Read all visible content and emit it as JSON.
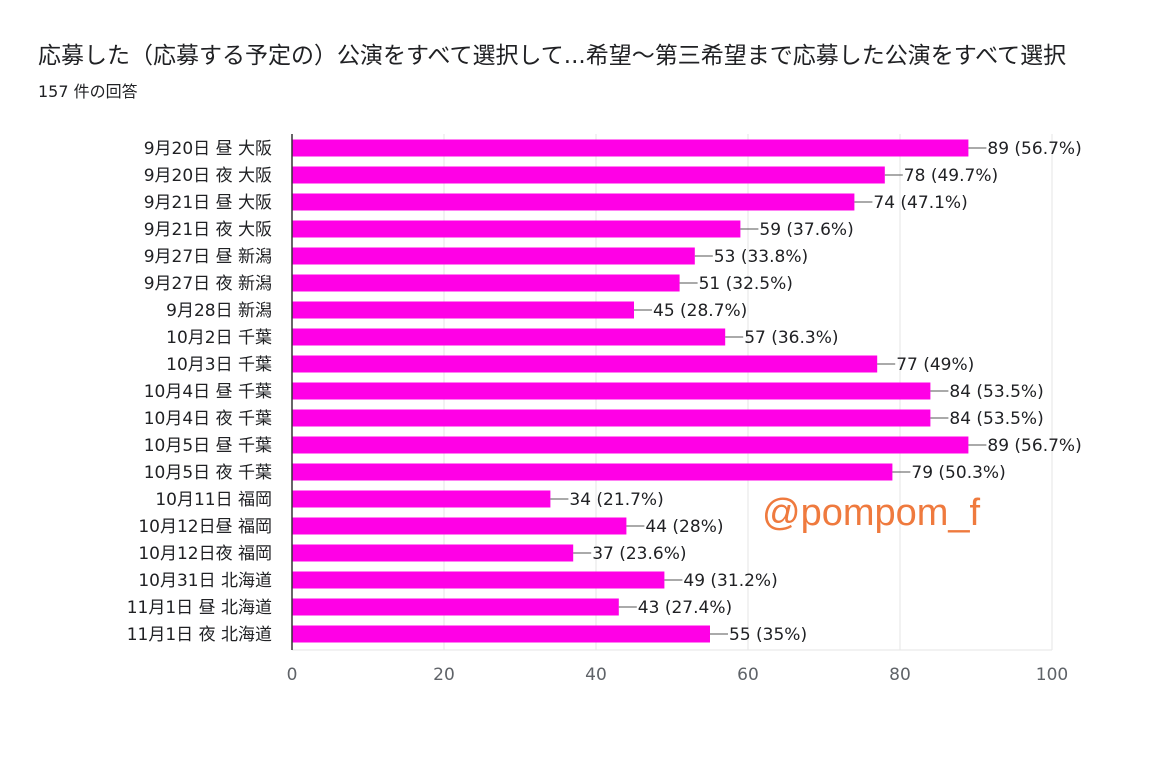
{
  "header": {
    "title": "応募した（応募する予定の）公演をすべて選択して...希望〜第三希望まで応募した公演をすべて選択",
    "subtitle": "157 件の回答"
  },
  "watermark": "@pompom_f",
  "colors": {
    "bar": "#ff00e6",
    "grid": "#e6e6e6",
    "axis": "#333333",
    "watermark": "#ef7a3e"
  },
  "chart_data": {
    "type": "bar",
    "orientation": "horizontal",
    "categories": [
      "9月20日 昼 大阪",
      "9月20日 夜 大阪",
      "9月21日 昼 大阪",
      "9月21日 夜 大阪",
      "9月27日 昼 新潟",
      "9月27日 夜 新潟",
      "9月28日 新潟",
      "10月2日 千葉",
      "10月3日 千葉",
      "10月4日 昼 千葉",
      "10月4日 夜 千葉",
      "10月5日 昼 千葉",
      "10月5日 夜 千葉",
      "10月11日 福岡",
      "10月12日昼 福岡",
      "10月12日夜 福岡",
      "10月31日 北海道",
      "11月1日 昼 北海道",
      "11月1日 夜 北海道"
    ],
    "values": [
      89,
      78,
      74,
      59,
      53,
      51,
      45,
      57,
      77,
      84,
      84,
      89,
      79,
      34,
      44,
      37,
      49,
      43,
      55
    ],
    "value_labels": [
      "89 (56.7%)",
      "78 (49.7%)",
      "74 (47.1%)",
      "59 (37.6%)",
      "53 (33.8%)",
      "51 (32.5%)",
      "45 (28.7%)",
      "57 (36.3%)",
      "77 (49%)",
      "84 (53.5%)",
      "84 (53.5%)",
      "89 (56.7%)",
      "79 (50.3%)",
      "34 (21.7%)",
      "44 (28%)",
      "37 (23.6%)",
      "49 (31.2%)",
      "43 (27.4%)",
      "55 (35%)"
    ],
    "xlim": [
      0,
      100
    ],
    "xticks": [
      "0",
      "20",
      "40",
      "60",
      "80",
      "100"
    ],
    "grid": true,
    "legend": "none"
  }
}
